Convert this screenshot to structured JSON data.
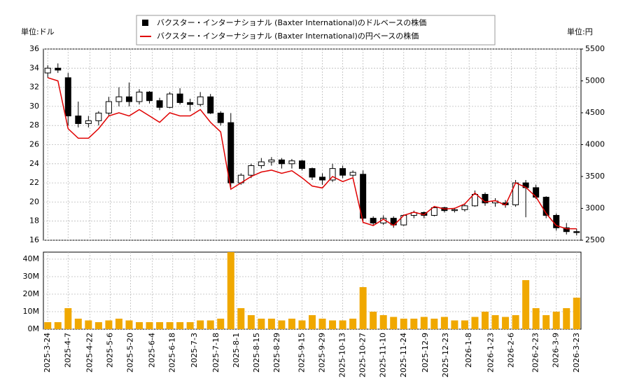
{
  "chart_data": {
    "type": "candlestick",
    "unit_left": "単位:ドル",
    "unit_right": "単位:円",
    "grid": true,
    "x": [
      "2025-3-24",
      "2025-3-31",
      "2025-4-7",
      "2025-4-14",
      "2025-4-21",
      "2025-4-28",
      "2025-5-5",
      "2025-5-12",
      "2025-5-19",
      "2025-5-26",
      "2025-6-2",
      "2025-6-9",
      "2025-6-16",
      "2025-6-23",
      "2025-6-30",
      "2025-7-7",
      "2025-7-14",
      "2025-7-21",
      "2025-7-28",
      "2025-8-4",
      "2025-8-11",
      "2025-8-18",
      "2025-8-25",
      "2025-9-1",
      "2025-9-8",
      "2025-9-15",
      "2025-9-22",
      "2025-9-29",
      "2025-10-6",
      "2025-10-13",
      "2025-10-20",
      "2025-10-27",
      "2025-11-3",
      "2025-11-10",
      "2025-11-17",
      "2025-11-24",
      "2025-12-1",
      "2025-12-8",
      "2025-12-15",
      "2025-12-22",
      "2025-12-29",
      "2026-1-5",
      "2026-1-12",
      "2026-1-19",
      "2026-1-26",
      "2026-2-2",
      "2026-2-9",
      "2026-2-16",
      "2026-2-23",
      "2026-3-2",
      "2026-3-9",
      "2026-3-16",
      "2026-3-23"
    ],
    "xlim": [
      "2025-3-21",
      "2026-3-26"
    ],
    "xticks": [
      "2025-3-24",
      "2025-4-7",
      "2025-4-22",
      "2025-5-6",
      "2025-5-20",
      "2025-6-4",
      "2025-6-18",
      "2025-7-3",
      "2025-7-18",
      "2025-8-1",
      "2025-8-15",
      "2025-8-29",
      "2025-9-15",
      "2025-9-29",
      "2025-10-13",
      "2025-10-27",
      "2025-11-10",
      "2025-11-24",
      "2025-12-9",
      "2025-12-23",
      "2026-1-8",
      "2026-1-23",
      "2026-2-6",
      "2026-2-23",
      "2026-3-9",
      "2026-3-23"
    ],
    "ylim": [
      16,
      36
    ],
    "yticks": [
      16,
      18,
      20,
      22,
      24,
      26,
      28,
      30,
      32,
      34,
      36
    ],
    "y2lim": [
      2500,
      5500
    ],
    "y2ticks": [
      2500,
      3000,
      3500,
      4000,
      4500,
      5000,
      5500
    ],
    "series": [
      {
        "name": "バクスター・インターナショナル (Baxter International)のドルベースの株価",
        "type": "candlestick",
        "color": "#000000",
        "open": [
          33.5,
          34,
          33,
          29,
          28.2,
          28.5,
          29.3,
          30.5,
          31,
          30.5,
          31.5,
          30.6,
          29.9,
          31.3,
          30.4,
          30.2,
          31,
          29.3,
          28.3,
          22,
          22.8,
          23.8,
          24.2,
          24.4,
          24,
          24.3,
          23.5,
          22.6,
          22.3,
          23.5,
          22.8,
          22.9,
          18.3,
          17.8,
          18.3,
          17.6,
          18.6,
          18.9,
          18.6,
          19.4,
          19.1,
          19.2,
          19.6,
          20.8,
          19.9,
          19.9,
          19.7,
          22,
          21.5,
          20.5,
          18.6,
          17.3,
          16.9
        ],
        "high": [
          34.3,
          34.5,
          33.5,
          30.5,
          29,
          29.5,
          31,
          32,
          32.5,
          31.8,
          31.6,
          30.9,
          31.5,
          31.9,
          30.8,
          31.5,
          31.3,
          29.5,
          29.3,
          23,
          24,
          24.6,
          24.7,
          24.6,
          24.5,
          24.4,
          23.6,
          23,
          24,
          23.8,
          23.3,
          23.3,
          18.5,
          18.6,
          18.5,
          18.7,
          19.1,
          19,
          19.5,
          19.5,
          19.4,
          19.8,
          21.2,
          21,
          20.4,
          20.2,
          22.3,
          22.3,
          21.8,
          20.6,
          18.8,
          17.8,
          17.2
        ],
        "low": [
          33,
          33.5,
          28,
          27.8,
          27.8,
          28,
          29,
          30,
          30,
          30.2,
          30.3,
          29.6,
          29.8,
          30.2,
          29.5,
          30,
          29.2,
          28,
          21.5,
          21.8,
          22.5,
          23.5,
          23.8,
          23.5,
          23.5,
          23.3,
          22.3,
          21.8,
          22.1,
          22.5,
          22.6,
          18,
          17.5,
          17.6,
          17.3,
          17.5,
          18.3,
          18.3,
          18.5,
          18.9,
          18.9,
          19,
          19.5,
          19.6,
          19.5,
          19.4,
          19.5,
          18.4,
          20.3,
          18.3,
          17,
          16.6,
          16.5
        ],
        "close": [
          34,
          33.8,
          29,
          28.2,
          28.5,
          29.3,
          30.5,
          31,
          30.5,
          31.5,
          30.6,
          29.9,
          31.3,
          30.4,
          30.2,
          31,
          29.3,
          28.3,
          22,
          22.8,
          23.8,
          24.2,
          24.4,
          24,
          24.3,
          23.5,
          22.6,
          22.3,
          23.5,
          22.8,
          23.1,
          18.3,
          17.8,
          18.3,
          17.6,
          18.6,
          18.9,
          18.6,
          19.4,
          19.1,
          19.2,
          19.6,
          20.8,
          19.9,
          20.1,
          19.7,
          22,
          21.5,
          20.5,
          18.6,
          17.3,
          16.9,
          16.8
        ]
      },
      {
        "name": "バクスター・インターナショナル (Baxter International)の円ベースの株価",
        "type": "line",
        "axis": "y2",
        "color": "#e00000",
        "values": [
          5050,
          5000,
          4250,
          4100,
          4100,
          4250,
          4450,
          4500,
          4450,
          4550,
          4450,
          4350,
          4500,
          4450,
          4450,
          4550,
          4350,
          4200,
          3300,
          3400,
          3500,
          3570,
          3600,
          3550,
          3590,
          3480,
          3350,
          3320,
          3500,
          3420,
          3480,
          2780,
          2730,
          2830,
          2730,
          2890,
          2940,
          2900,
          3030,
          2990,
          3000,
          3070,
          3240,
          3100,
          3120,
          3050,
          3400,
          3330,
          3180,
          2920,
          2730,
          2680,
          2680
        ]
      }
    ],
    "volume": {
      "color": "#f0a800",
      "ylim": [
        0,
        44000000
      ],
      "yticks": [
        {
          "value": 0,
          "label": "0M"
        },
        {
          "value": 10000000,
          "label": "10M"
        },
        {
          "value": 20000000,
          "label": "20M"
        },
        {
          "value": 30000000,
          "label": "30M"
        },
        {
          "value": 40000000,
          "label": "40M"
        }
      ],
      "values": [
        4000000,
        4000000,
        12000000,
        6000000,
        5000000,
        4000000,
        5000000,
        6000000,
        5000000,
        4000000,
        4000000,
        4000000,
        4000000,
        4000000,
        4000000,
        5000000,
        5000000,
        6000000,
        44000000,
        12000000,
        8000000,
        6000000,
        6000000,
        5000000,
        6000000,
        5000000,
        8000000,
        6000000,
        5000000,
        5000000,
        6000000,
        24000000,
        10000000,
        8000000,
        7000000,
        6000000,
        6000000,
        7000000,
        6000000,
        7000000,
        5000000,
        5000000,
        7000000,
        10000000,
        8000000,
        7000000,
        8000000,
        28000000,
        12000000,
        8000000,
        10000000,
        12000000,
        18000000
      ]
    }
  }
}
